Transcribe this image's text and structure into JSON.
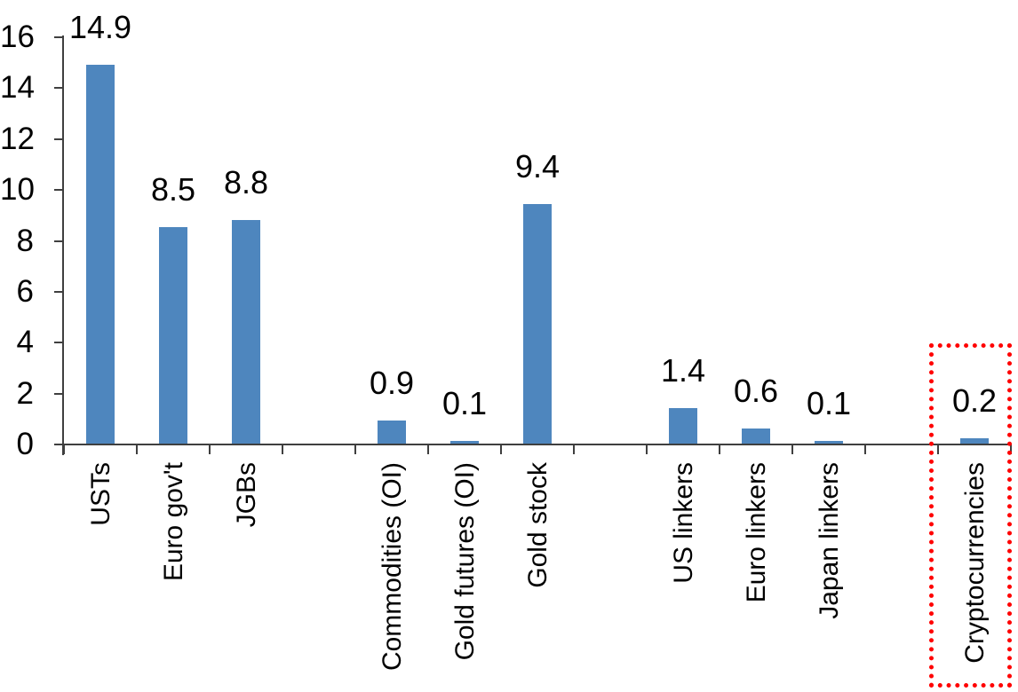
{
  "chart_data": {
    "type": "bar",
    "categories": [
      "USTs",
      "Euro gov't",
      "JGBs",
      "Commodities (OI)",
      "Gold futures (OI)",
      "Gold stock",
      "US linkers",
      "Euro linkers",
      "Japan linkers",
      "Cryptocurrencies"
    ],
    "values": [
      14.9,
      8.5,
      8.8,
      0.9,
      0.1,
      9.4,
      1.4,
      0.6,
      0.1,
      0.2
    ],
    "value_labels": [
      "14.9",
      "8.5",
      "8.8",
      "0.9",
      "0.1",
      "9.4",
      "1.4",
      "0.6",
      "0.1",
      "0.2"
    ],
    "group_sizes": [
      3,
      3,
      3,
      1
    ],
    "title": "",
    "xlabel": "",
    "ylabel": "",
    "ylim": [
      0,
      16
    ],
    "yticks": [
      0,
      2,
      4,
      6,
      8,
      10,
      12,
      14,
      16
    ],
    "grid": false,
    "legend": false,
    "bar_color": "#4E86BE",
    "axis_color": "#3F3F3F",
    "text_color": "#000000",
    "highlight": {
      "category": "Cryptocurrencies",
      "category_index": 9,
      "color": "#FF0000",
      "style": "dotted-box"
    }
  }
}
